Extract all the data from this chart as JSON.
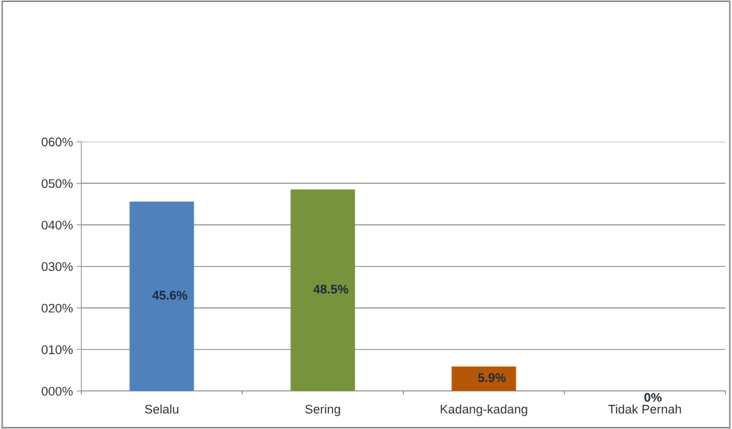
{
  "chart_data": {
    "type": "bar",
    "categories": [
      "Selalu",
      "Sering",
      "Kadang-kadang",
      "Tidak Pernah"
    ],
    "values": [
      45.6,
      48.5,
      5.9,
      0
    ],
    "colors": [
      "#4f81bd",
      "#77933c",
      "#b65708",
      "#8064a2"
    ],
    "value_labels": [
      "45.6%",
      "48.5%",
      "5.9%",
      "0%"
    ],
    "ylim": [
      0,
      60
    ],
    "yticks": [
      {
        "value": 0,
        "label": "000%"
      },
      {
        "value": 10,
        "label": "010%"
      },
      {
        "value": 20,
        "label": "020%"
      },
      {
        "value": 30,
        "label": "030%"
      },
      {
        "value": 40,
        "label": "040%"
      },
      {
        "value": 50,
        "label": "050%"
      },
      {
        "value": 60,
        "label": "060%"
      }
    ],
    "grid": "y",
    "legend": false
  }
}
